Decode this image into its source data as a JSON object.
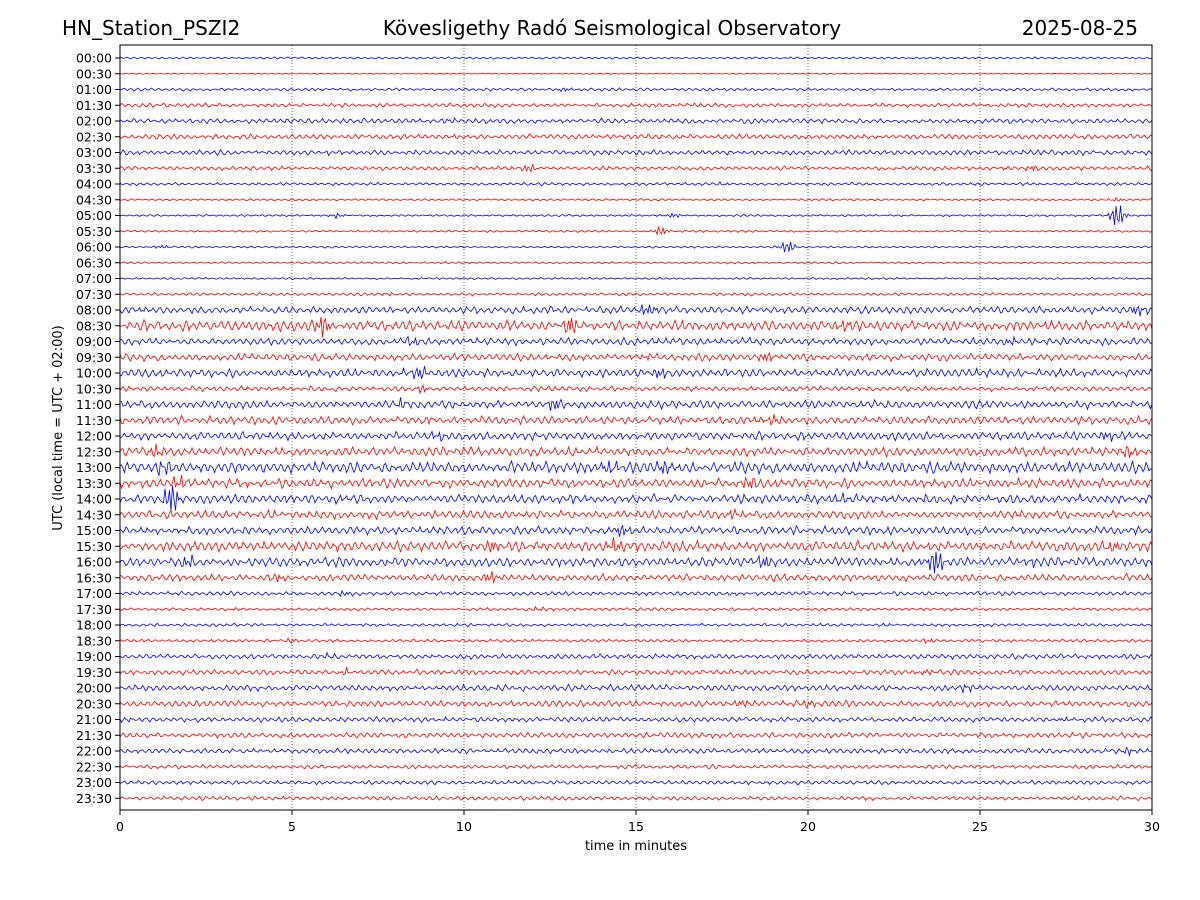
{
  "header": {
    "station": "HN_Station_PSZI2",
    "observatory": "Kövesligethy Radó Seismological Observatory",
    "date": "2025-08-25"
  },
  "chart_data": {
    "type": "line",
    "title": "Kövesligethy Radó Seismological Observatory",
    "xlabel": "time in minutes",
    "ylabel": "UTC (local time = UTC + 02:00)",
    "xlim": [
      0,
      30
    ],
    "x_ticks": [
      "0",
      "5",
      "10",
      "15",
      "20",
      "25",
      "30"
    ],
    "grid": "vertical dotted at each x tick",
    "trace_colors": [
      "#0000ff",
      "#ff0000"
    ],
    "rows": [
      {
        "label": "00:00",
        "activity": 0.1,
        "events": []
      },
      {
        "label": "00:30",
        "activity": 0.05,
        "events": []
      },
      {
        "label": "01:00",
        "activity": 0.15,
        "events": [
          {
            "t": 12.9,
            "amp": 0.15
          }
        ]
      },
      {
        "label": "01:30",
        "activity": 0.2,
        "events": []
      },
      {
        "label": "02:00",
        "activity": 0.25,
        "events": [
          {
            "t": 9.5,
            "amp": 0.15
          }
        ]
      },
      {
        "label": "02:30",
        "activity": 0.25,
        "events": [
          {
            "t": 9.7,
            "amp": 0.15
          }
        ]
      },
      {
        "label": "03:00",
        "activity": 0.25,
        "events": [
          {
            "t": 6.0,
            "amp": 0.12
          }
        ]
      },
      {
        "label": "03:30",
        "activity": 0.2,
        "events": [
          {
            "t": 11.9,
            "amp": 0.35
          },
          {
            "t": 26.5,
            "amp": 0.25
          }
        ]
      },
      {
        "label": "04:00",
        "activity": 0.15,
        "events": [
          {
            "t": 17.5,
            "amp": 0.1
          }
        ]
      },
      {
        "label": "04:30",
        "activity": 0.1,
        "events": [
          {
            "t": 29.0,
            "amp": 0.15
          }
        ]
      },
      {
        "label": "05:00",
        "activity": 0.1,
        "events": [
          {
            "t": 6.3,
            "amp": 0.2
          },
          {
            "t": 16.1,
            "amp": 0.2
          },
          {
            "t": 29.0,
            "amp": 1.1
          }
        ]
      },
      {
        "label": "05:30",
        "activity": 0.1,
        "events": [
          {
            "t": 15.7,
            "amp": 0.4
          }
        ]
      },
      {
        "label": "06:00",
        "activity": 0.1,
        "events": [
          {
            "t": 1.2,
            "amp": 0.15
          },
          {
            "t": 19.4,
            "amp": 0.6
          }
        ]
      },
      {
        "label": "06:30",
        "activity": 0.1,
        "events": []
      },
      {
        "label": "07:00",
        "activity": 0.1,
        "events": []
      },
      {
        "label": "07:30",
        "activity": 0.15,
        "events": [
          {
            "t": 7.8,
            "amp": 0.12
          }
        ]
      },
      {
        "label": "08:00",
        "activity": 0.35,
        "events": [
          {
            "t": 15.3,
            "amp": 0.55
          },
          {
            "t": 29.6,
            "amp": 0.35
          }
        ]
      },
      {
        "label": "08:30",
        "activity": 0.5,
        "events": [
          {
            "t": 5.9,
            "amp": 1.0
          },
          {
            "t": 13.1,
            "amp": 0.7
          },
          {
            "t": 21.0,
            "amp": 0.4
          }
        ]
      },
      {
        "label": "09:00",
        "activity": 0.35,
        "events": [
          {
            "t": 8.5,
            "amp": 0.3
          },
          {
            "t": 25.9,
            "amp": 0.3
          }
        ]
      },
      {
        "label": "09:30",
        "activity": 0.35,
        "events": [
          {
            "t": 15.3,
            "amp": 0.3
          },
          {
            "t": 18.8,
            "amp": 0.35
          }
        ]
      },
      {
        "label": "10:00",
        "activity": 0.4,
        "events": [
          {
            "t": 8.7,
            "amp": 0.45
          },
          {
            "t": 15.7,
            "amp": 0.5
          }
        ]
      },
      {
        "label": "10:30",
        "activity": 0.25,
        "events": [
          {
            "t": 8.8,
            "amp": 0.35
          }
        ]
      },
      {
        "label": "11:00",
        "activity": 0.4,
        "events": [
          {
            "t": 8.2,
            "amp": 0.45
          },
          {
            "t": 12.6,
            "amp": 0.55
          }
        ]
      },
      {
        "label": "11:30",
        "activity": 0.4,
        "events": [
          {
            "t": 9.0,
            "amp": 0.3
          },
          {
            "t": 19.0,
            "amp": 0.4
          }
        ]
      },
      {
        "label": "12:00",
        "activity": 0.4,
        "events": [
          {
            "t": 9.2,
            "amp": 0.3
          },
          {
            "t": 28.7,
            "amp": 0.4
          }
        ]
      },
      {
        "label": "12:30",
        "activity": 0.45,
        "events": [
          {
            "t": 1.1,
            "amp": 0.55
          },
          {
            "t": 29.3,
            "amp": 0.6
          }
        ]
      },
      {
        "label": "13:00",
        "activity": 0.55,
        "events": [
          {
            "t": 1.3,
            "amp": 0.6
          },
          {
            "t": 14.2,
            "amp": 0.6
          },
          {
            "t": 15.8,
            "amp": 0.55
          }
        ]
      },
      {
        "label": "13:30",
        "activity": 0.45,
        "events": [
          {
            "t": 1.7,
            "amp": 0.6
          },
          {
            "t": 18.3,
            "amp": 0.4
          }
        ]
      },
      {
        "label": "14:00",
        "activity": 0.45,
        "events": [
          {
            "t": 1.5,
            "amp": 1.3
          },
          {
            "t": 21.0,
            "amp": 0.4
          }
        ]
      },
      {
        "label": "14:30",
        "activity": 0.4,
        "events": [
          {
            "t": 17.8,
            "amp": 0.4
          }
        ]
      },
      {
        "label": "15:00",
        "activity": 0.4,
        "events": [
          {
            "t": 14.6,
            "amp": 0.55
          }
        ]
      },
      {
        "label": "15:30",
        "activity": 0.5,
        "events": [
          {
            "t": 10.8,
            "amp": 0.55
          },
          {
            "t": 14.4,
            "amp": 0.6
          },
          {
            "t": 28.9,
            "amp": 0.4
          }
        ]
      },
      {
        "label": "16:00",
        "activity": 0.45,
        "events": [
          {
            "t": 2.0,
            "amp": 0.4
          },
          {
            "t": 18.7,
            "amp": 0.5
          },
          {
            "t": 23.7,
            "amp": 1.2
          },
          {
            "t": 26.5,
            "amp": 0.3
          }
        ]
      },
      {
        "label": "16:30",
        "activity": 0.35,
        "events": [
          {
            "t": 4.6,
            "amp": 0.35
          },
          {
            "t": 10.8,
            "amp": 0.55
          }
        ]
      },
      {
        "label": "17:00",
        "activity": 0.2,
        "events": [
          {
            "t": 6.5,
            "amp": 0.2
          }
        ]
      },
      {
        "label": "17:30",
        "activity": 0.15,
        "events": [
          {
            "t": 3.4,
            "amp": 0.12
          },
          {
            "t": 12.2,
            "amp": 0.15
          }
        ]
      },
      {
        "label": "18:00",
        "activity": 0.15,
        "events": []
      },
      {
        "label": "18:30",
        "activity": 0.15,
        "events": [
          {
            "t": 5.0,
            "amp": 0.2
          },
          {
            "t": 23.5,
            "amp": 0.2
          }
        ]
      },
      {
        "label": "19:00",
        "activity": 0.25,
        "events": [
          {
            "t": 6.0,
            "amp": 0.15
          }
        ]
      },
      {
        "label": "19:30",
        "activity": 0.25,
        "events": [
          {
            "t": 6.5,
            "amp": 0.2
          },
          {
            "t": 23.5,
            "amp": 0.2
          }
        ]
      },
      {
        "label": "20:00",
        "activity": 0.3,
        "events": [
          {
            "t": 24.6,
            "amp": 0.3
          }
        ]
      },
      {
        "label": "20:30",
        "activity": 0.3,
        "events": [
          {
            "t": 18.0,
            "amp": 0.25
          },
          {
            "t": 20.0,
            "amp": 0.25
          }
        ]
      },
      {
        "label": "21:00",
        "activity": 0.25,
        "events": [
          {
            "t": 27.5,
            "amp": 0.2
          }
        ]
      },
      {
        "label": "21:30",
        "activity": 0.25,
        "events": []
      },
      {
        "label": "22:00",
        "activity": 0.25,
        "events": [
          {
            "t": 29.3,
            "amp": 0.25
          }
        ]
      },
      {
        "label": "22:30",
        "activity": 0.2,
        "events": []
      },
      {
        "label": "23:00",
        "activity": 0.2,
        "events": []
      },
      {
        "label": "23:30",
        "activity": 0.2,
        "events": []
      }
    ]
  }
}
